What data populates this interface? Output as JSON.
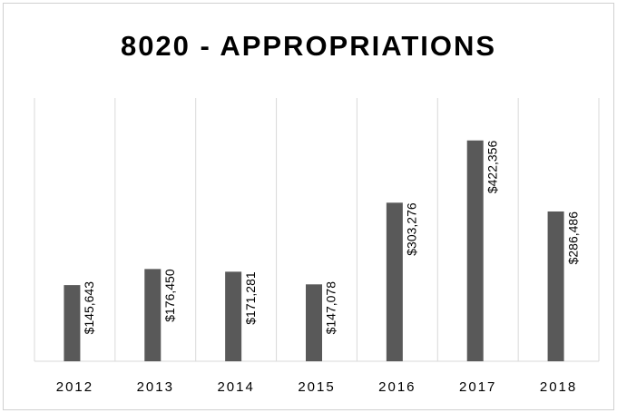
{
  "chart_data": {
    "type": "bar",
    "title": "8020 - APPROPRIATIONS",
    "categories": [
      "2012",
      "2013",
      "2014",
      "2015",
      "2016",
      "2017",
      "2018"
    ],
    "values": [
      145643,
      176450,
      171281,
      147078,
      303276,
      422356,
      286486
    ],
    "value_labels": [
      "$145,643",
      "$176,450",
      "$171,281",
      "$147,078",
      "$303,276",
      "$422,356",
      "$286,486"
    ],
    "color": "#595959",
    "ylim": [
      0,
      500000
    ],
    "grid": true
  }
}
